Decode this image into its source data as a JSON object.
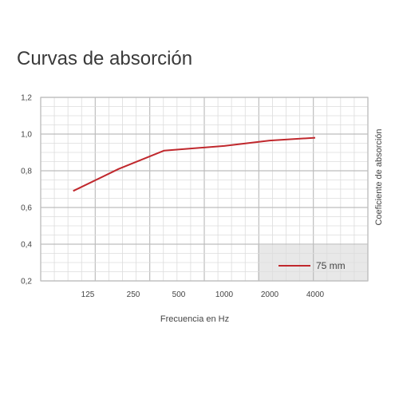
{
  "chart_data": {
    "type": "line",
    "title": "Curvas de absorción",
    "xlabel": "Frecuencia en Hz",
    "ylabel": "Coeficiente de absorción",
    "x_ticks": [
      "125",
      "250",
      "500",
      "1000",
      "2000",
      "4000"
    ],
    "y_ticks": [
      "0,2",
      "0,4",
      "0,6",
      "0,8",
      "1,0",
      "1,2"
    ],
    "ylim": [
      0.2,
      1.2
    ],
    "grid": true,
    "legend_position": "bottom-right",
    "series": [
      {
        "name": "75 mm",
        "color": "#c0282d",
        "x": [
          100,
          200,
          400,
          1000,
          2000,
          4000
        ],
        "y": [
          0.69,
          0.81,
          0.91,
          0.935,
          0.965,
          0.98
        ]
      }
    ]
  },
  "colors": {
    "grid_minor": "#dcdcdc",
    "grid_major": "#bdbdbd",
    "legend_bg": "#e8e8e8"
  }
}
